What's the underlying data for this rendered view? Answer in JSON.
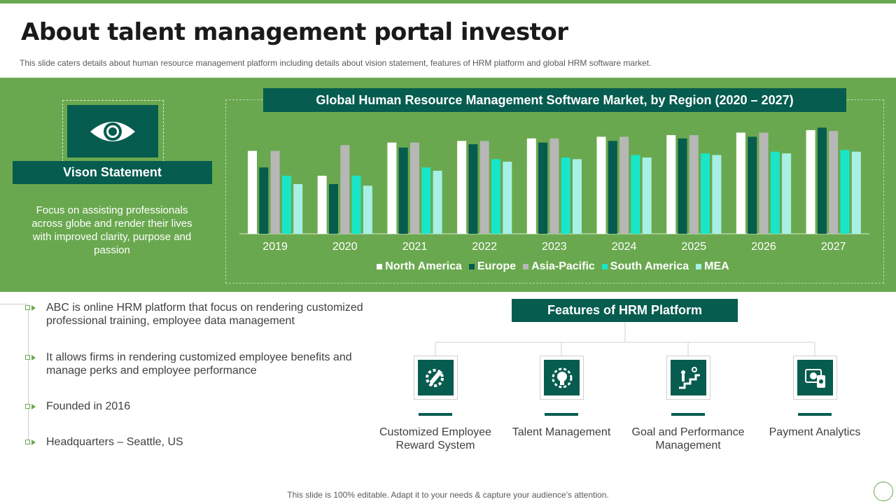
{
  "title": "About talent management portal investor",
  "subtitle": "This slide caters details about human resource management platform including details about vision statement, features of HRM platform and global HRM software market.",
  "vision": {
    "icon": "eye-icon",
    "label": "Vison Statement",
    "text": "Focus on assisting professionals across globe and render their lives with improved clarity, purpose and passion"
  },
  "chart_data": {
    "type": "bar",
    "title": "Global Human Resource Management Software Market, by Region (2020 – 2027)",
    "categories": [
      "2019",
      "2020",
      "2021",
      "2022",
      "2023",
      "2024",
      "2025",
      "2026",
      "2027"
    ],
    "ylim": [
      0,
      130
    ],
    "grid": false,
    "legend_position": "bottom",
    "series": [
      {
        "name": "North America",
        "color": "#ffffff",
        "values": [
          100,
          70,
          110,
          112,
          115,
          117,
          119,
          122,
          125
        ]
      },
      {
        "name": "Europe",
        "color": "#065c4e",
        "values": [
          80,
          60,
          104,
          108,
          110,
          112,
          115,
          117,
          128
        ]
      },
      {
        "name": "Asia-Pacific",
        "color": "#b7b7b7",
        "values": [
          100,
          107,
          110,
          112,
          115,
          117,
          119,
          122,
          124
        ]
      },
      {
        "name": "South America",
        "color": "#19e6c8",
        "values": [
          70,
          70,
          80,
          90,
          92,
          95,
          97,
          99,
          101
        ]
      },
      {
        "name": "MEA",
        "color": "#a6f0e6",
        "values": [
          60,
          58,
          76,
          87,
          90,
          92,
          95,
          97,
          99
        ]
      }
    ]
  },
  "bullets": [
    "ABC is online HRM platform that focus on rendering customized professional training, employee data management",
    "It allows firms in rendering customized employee benefits and manage perks and employee performance",
    "Founded in 2016",
    "Headquarters – Seattle, US"
  ],
  "features": {
    "title": "Features of HRM Platform",
    "items": [
      {
        "label": "Customized Employee Reward System",
        "icon": "pencil-gear-icon"
      },
      {
        "label": "Talent Management",
        "icon": "brain-gear-icon"
      },
      {
        "label": "Goal and Performance Management",
        "icon": "stairs-goal-icon"
      },
      {
        "label": "Payment Analytics",
        "icon": "payment-analytics-icon"
      }
    ]
  },
  "footer": "This slide is 100% editable. Adapt it to your needs & capture your audience’s attention."
}
